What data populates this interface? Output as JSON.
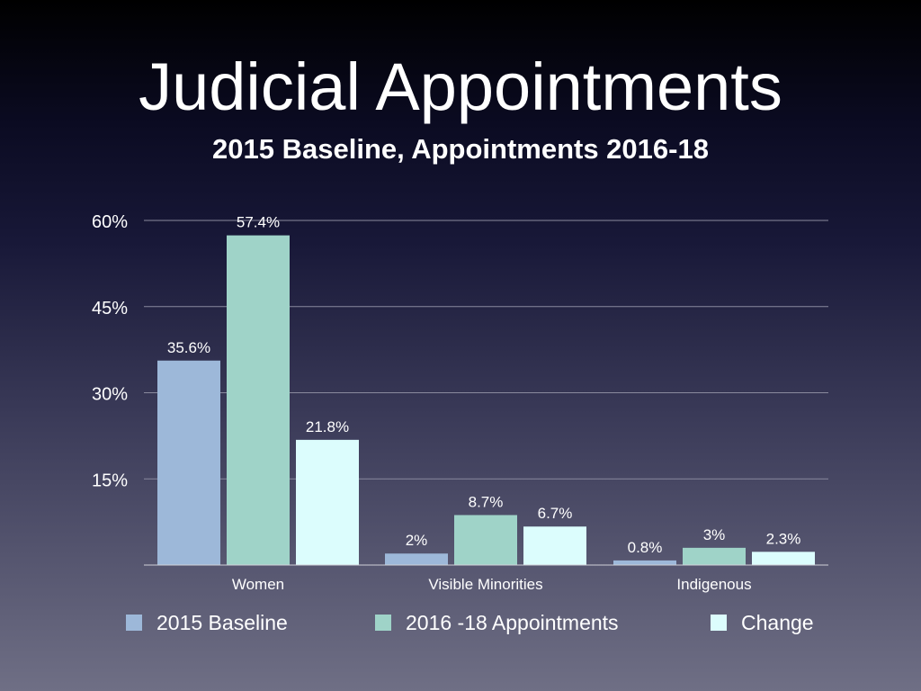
{
  "slide": {
    "title": "Judicial Appointments",
    "subtitle": "2015 Baseline, Appointments 2016-18"
  },
  "chart_data": {
    "type": "bar",
    "categories": [
      "Women",
      "Visible Minorities",
      "Indigenous"
    ],
    "series": [
      {
        "name": "2015 Baseline",
        "values": [
          35.6,
          2,
          0.8
        ],
        "labels": [
          "35.6%",
          "2%",
          "0.8%"
        ],
        "color": "#9db8d9"
      },
      {
        "name": "2016 -18 Appointments",
        "values": [
          57.4,
          8.7,
          3
        ],
        "labels": [
          "57.4%",
          "8.7%",
          "3%"
        ],
        "color": "#9fd3c8"
      },
      {
        "name": "Change",
        "values": [
          21.8,
          6.7,
          2.3
        ],
        "labels": [
          "21.8%",
          "6.7%",
          "2.3%"
        ],
        "color": "#dcfdfd"
      }
    ],
    "yticks": [
      15,
      30,
      45,
      60
    ],
    "ytick_labels": [
      "15%",
      "30%",
      "45%",
      "60%"
    ],
    "ylim": [
      0,
      60
    ],
    "grid": true,
    "legend": "bottom",
    "title": "",
    "xlabel": "",
    "ylabel": ""
  }
}
